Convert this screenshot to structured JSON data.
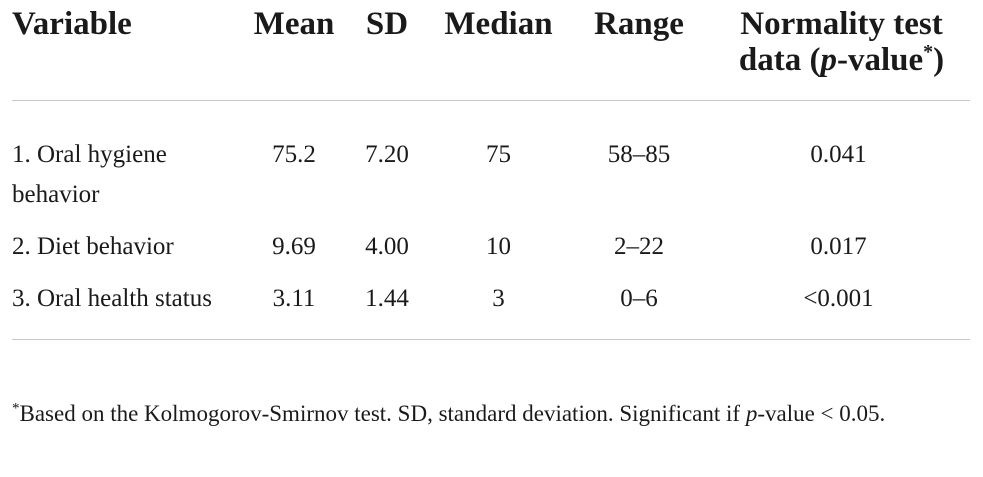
{
  "table": {
    "headers": [
      {
        "text": "Variable"
      },
      {
        "text": "Mean"
      },
      {
        "text": "SD"
      },
      {
        "text": "Median"
      },
      {
        "text": "Range"
      },
      {
        "line1": "Normality test",
        "line2_prefix": "data (",
        "line2_italic": "p",
        "line2_mid": "-value",
        "line2_ast": "*",
        "line2_suffix": ")"
      }
    ],
    "rows": [
      [
        "1. Oral hygiene behavior",
        "75.2",
        "7.20",
        "75",
        "58–85",
        "0.041"
      ],
      [
        "2. Diet behavior",
        "9.69",
        "4.00",
        "10",
        "2–22",
        "0.017"
      ],
      [
        "3. Oral health status",
        "3.11",
        "1.44",
        "3",
        "0–6",
        "<0.001"
      ]
    ]
  },
  "footnote": {
    "asterisk": "*",
    "text": "Based on the Kolmogorov-Smirnov test. SD, standard deviation. Significant if ",
    "italic": "p",
    "tail": "-value < 0.05."
  }
}
